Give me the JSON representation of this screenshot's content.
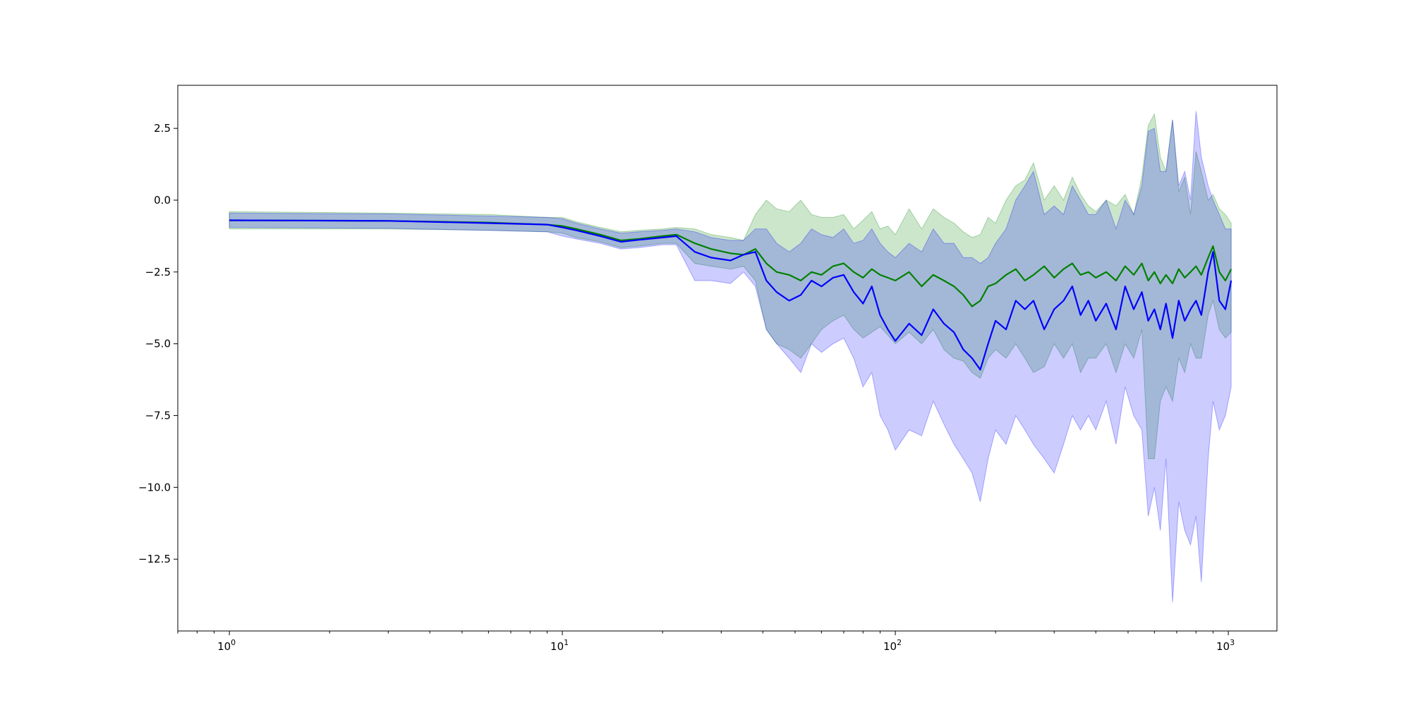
{
  "chart_data": {
    "type": "line",
    "title": "",
    "xlabel": "",
    "ylabel": "",
    "x_scale": "log",
    "xlim": [
      0.7,
      1400
    ],
    "ylim": [
      -15.0,
      4.0
    ],
    "x_ticks": [
      {
        "value": 1,
        "base": "10",
        "exp": "0"
      },
      {
        "value": 10,
        "base": "10",
        "exp": "1"
      },
      {
        "value": 100,
        "base": "10",
        "exp": "2"
      },
      {
        "value": 1000,
        "base": "10",
        "exp": "3"
      }
    ],
    "y_ticks": [
      {
        "value": 2.5,
        "label": "2.5"
      },
      {
        "value": 0.0,
        "label": "0.0"
      },
      {
        "value": -2.5,
        "label": "−2.5"
      },
      {
        "value": -5.0,
        "label": "−5.0"
      },
      {
        "value": -7.5,
        "label": "−7.5"
      },
      {
        "value": -10.0,
        "label": "−10.0"
      },
      {
        "value": -12.5,
        "label": "−12.5"
      }
    ],
    "grid": false,
    "legend": "none",
    "series": [
      {
        "color": "#008000",
        "band_color": "#008000",
        "band_opacity": 0.2,
        "points": [
          [
            1,
            -0.7,
            -1.0,
            -0.4
          ],
          [
            3,
            -0.72,
            -1.0,
            -0.45
          ],
          [
            6,
            -0.78,
            -1.05,
            -0.5
          ],
          [
            9,
            -0.85,
            -1.1,
            -0.6
          ],
          [
            10,
            -0.9,
            -1.15,
            -0.6
          ],
          [
            11,
            -1.0,
            -1.3,
            -0.75
          ],
          [
            13,
            -1.2,
            -1.45,
            -0.95
          ],
          [
            15,
            -1.4,
            -1.65,
            -1.1
          ],
          [
            17,
            -1.35,
            -1.6,
            -1.05
          ],
          [
            20,
            -1.25,
            -1.5,
            -1.0
          ],
          [
            22,
            -1.2,
            -1.5,
            -0.95
          ],
          [
            25,
            -1.5,
            -2.2,
            -1.0
          ],
          [
            28,
            -1.7,
            -2.3,
            -1.2
          ],
          [
            32,
            -1.85,
            -2.4,
            -1.3
          ],
          [
            35,
            -1.9,
            -2.3,
            -1.4
          ],
          [
            38,
            -1.7,
            -2.8,
            -0.5
          ],
          [
            41,
            -2.2,
            -4.5,
            0.0
          ],
          [
            44,
            -2.5,
            -5.0,
            -0.3
          ],
          [
            48,
            -2.6,
            -5.2,
            -0.4
          ],
          [
            52,
            -2.8,
            -5.5,
            0.0
          ],
          [
            56,
            -2.5,
            -5.0,
            -0.5
          ],
          [
            60,
            -2.6,
            -4.5,
            -0.6
          ],
          [
            65,
            -2.3,
            -4.2,
            -0.6
          ],
          [
            70,
            -2.2,
            -4.0,
            -0.5
          ],
          [
            75,
            -2.5,
            -4.5,
            -1.0
          ],
          [
            80,
            -2.7,
            -4.8,
            -0.7
          ],
          [
            85,
            -2.4,
            -4.6,
            -0.4
          ],
          [
            90,
            -2.6,
            -4.4,
            -1.0
          ],
          [
            95,
            -2.7,
            -4.7,
            -0.9
          ],
          [
            100,
            -2.8,
            -5.0,
            -1.2
          ],
          [
            110,
            -2.5,
            -4.6,
            -0.3
          ],
          [
            120,
            -3.0,
            -5.0,
            -1.0
          ],
          [
            130,
            -2.6,
            -4.5,
            -0.3
          ],
          [
            140,
            -2.8,
            -5.2,
            -0.6
          ],
          [
            150,
            -3.0,
            -5.5,
            -0.8
          ],
          [
            160,
            -3.3,
            -5.6,
            -1.1
          ],
          [
            170,
            -3.7,
            -6.0,
            -1.3
          ],
          [
            180,
            -3.5,
            -6.2,
            -1.2
          ],
          [
            190,
            -3.0,
            -5.5,
            -0.6
          ],
          [
            200,
            -2.9,
            -5.2,
            -0.8
          ],
          [
            215,
            -2.6,
            -5.5,
            0.0
          ],
          [
            230,
            -2.4,
            -5.0,
            0.5
          ],
          [
            245,
            -2.8,
            -5.5,
            0.7
          ],
          [
            260,
            -2.6,
            -6.0,
            1.3
          ],
          [
            280,
            -2.3,
            -5.8,
            0.0
          ],
          [
            300,
            -2.7,
            -5.0,
            0.5
          ],
          [
            320,
            -2.4,
            -5.5,
            0.0
          ],
          [
            340,
            -2.2,
            -5.0,
            0.8
          ],
          [
            360,
            -2.6,
            -6.0,
            0.2
          ],
          [
            380,
            -2.5,
            -5.5,
            -0.2
          ],
          [
            400,
            -2.7,
            -5.5,
            -0.4
          ],
          [
            430,
            -2.5,
            -5.0,
            0.0
          ],
          [
            460,
            -2.8,
            -6.0,
            -0.2
          ],
          [
            490,
            -2.3,
            -5.0,
            0.2
          ],
          [
            520,
            -2.6,
            -5.5,
            -0.5
          ],
          [
            550,
            -2.2,
            -4.5,
            0.8
          ],
          [
            575,
            -2.8,
            -9.0,
            2.6
          ],
          [
            600,
            -2.5,
            -9.0,
            3.0
          ],
          [
            625,
            -2.9,
            -7.0,
            1.5
          ],
          [
            650,
            -2.6,
            -6.5,
            1.0
          ],
          [
            680,
            -2.9,
            -7.0,
            2.8
          ],
          [
            710,
            -2.4,
            -5.5,
            0.3
          ],
          [
            740,
            -2.7,
            -6.0,
            0.8
          ],
          [
            770,
            -2.5,
            -5.0,
            -0.5
          ],
          [
            800,
            -2.3,
            -5.5,
            1.7
          ],
          [
            830,
            -2.6,
            -5.5,
            1.0
          ],
          [
            870,
            -2.0,
            -4.0,
            0.0
          ],
          [
            900,
            -1.6,
            -3.5,
            0.2
          ],
          [
            940,
            -2.5,
            -4.5,
            -0.3
          ],
          [
            980,
            -2.8,
            -4.8,
            -0.5
          ],
          [
            1020,
            -2.4,
            -4.6,
            -0.8
          ]
        ]
      },
      {
        "color": "#0000ff",
        "band_color": "#0000ff",
        "band_opacity": 0.2,
        "points": [
          [
            1,
            -0.7,
            -0.95,
            -0.45
          ],
          [
            3,
            -0.72,
            -0.98,
            -0.48
          ],
          [
            6,
            -0.8,
            -1.05,
            -0.55
          ],
          [
            9,
            -0.85,
            -1.1,
            -0.6
          ],
          [
            10,
            -0.95,
            -1.25,
            -0.65
          ],
          [
            11,
            -1.05,
            -1.35,
            -0.8
          ],
          [
            13,
            -1.25,
            -1.5,
            -1.0
          ],
          [
            15,
            -1.45,
            -1.7,
            -1.15
          ],
          [
            17,
            -1.38,
            -1.65,
            -1.1
          ],
          [
            20,
            -1.3,
            -1.55,
            -1.05
          ],
          [
            22,
            -1.25,
            -1.55,
            -1.0
          ],
          [
            25,
            -1.8,
            -2.8,
            -1.1
          ],
          [
            28,
            -2.0,
            -2.8,
            -1.3
          ],
          [
            32,
            -2.1,
            -2.9,
            -1.4
          ],
          [
            35,
            -1.9,
            -2.5,
            -1.4
          ],
          [
            38,
            -1.8,
            -3.0,
            -1.0
          ],
          [
            41,
            -2.8,
            -4.5,
            -1.0
          ],
          [
            44,
            -3.2,
            -5.0,
            -1.5
          ],
          [
            48,
            -3.5,
            -5.5,
            -1.8
          ],
          [
            52,
            -3.3,
            -6.0,
            -1.5
          ],
          [
            56,
            -2.8,
            -5.0,
            -1.0
          ],
          [
            60,
            -3.0,
            -5.3,
            -1.2
          ],
          [
            65,
            -2.7,
            -5.0,
            -1.3
          ],
          [
            70,
            -2.6,
            -4.8,
            -1.0
          ],
          [
            75,
            -3.2,
            -5.5,
            -1.5
          ],
          [
            80,
            -3.6,
            -6.5,
            -1.4
          ],
          [
            85,
            -3.0,
            -6.0,
            -1.0
          ],
          [
            90,
            -4.0,
            -7.5,
            -1.5
          ],
          [
            95,
            -4.5,
            -8.0,
            -1.8
          ],
          [
            100,
            -4.9,
            -8.7,
            -2.0
          ],
          [
            110,
            -4.3,
            -8.0,
            -1.5
          ],
          [
            120,
            -4.7,
            -8.2,
            -1.8
          ],
          [
            130,
            -3.8,
            -7.0,
            -1.0
          ],
          [
            140,
            -4.3,
            -7.8,
            -1.5
          ],
          [
            150,
            -4.6,
            -8.5,
            -1.5
          ],
          [
            160,
            -5.2,
            -9.0,
            -2.0
          ],
          [
            170,
            -5.5,
            -9.5,
            -2.0
          ],
          [
            180,
            -5.9,
            -10.5,
            -2.2
          ],
          [
            190,
            -5.0,
            -9.0,
            -2.0
          ],
          [
            200,
            -4.2,
            -8.0,
            -1.5
          ],
          [
            215,
            -4.5,
            -8.5,
            -1.0
          ],
          [
            230,
            -3.5,
            -7.5,
            0.0
          ],
          [
            245,
            -3.8,
            -8.0,
            0.5
          ],
          [
            260,
            -3.5,
            -8.5,
            1.0
          ],
          [
            280,
            -4.5,
            -9.0,
            -0.5
          ],
          [
            300,
            -3.8,
            -9.5,
            -0.2
          ],
          [
            320,
            -3.5,
            -8.5,
            -0.5
          ],
          [
            340,
            -3.0,
            -7.5,
            0.5
          ],
          [
            360,
            -4.0,
            -8.0,
            0.0
          ],
          [
            380,
            -3.5,
            -7.5,
            -0.5
          ],
          [
            400,
            -4.2,
            -8.0,
            -0.5
          ],
          [
            430,
            -3.6,
            -7.0,
            0.0
          ],
          [
            460,
            -4.5,
            -8.5,
            -1.0
          ],
          [
            490,
            -3.0,
            -6.5,
            0.0
          ],
          [
            520,
            -3.8,
            -7.5,
            -0.5
          ],
          [
            550,
            -3.2,
            -8.0,
            0.5
          ],
          [
            575,
            -4.2,
            -11.0,
            2.4
          ],
          [
            600,
            -3.8,
            -10.0,
            2.5
          ],
          [
            625,
            -4.5,
            -11.5,
            1.0
          ],
          [
            650,
            -3.6,
            -9.0,
            1.0
          ],
          [
            680,
            -4.8,
            -14.0,
            2.8
          ],
          [
            710,
            -3.5,
            -10.5,
            0.5
          ],
          [
            740,
            -4.2,
            -11.5,
            1.0
          ],
          [
            770,
            -3.8,
            -12.0,
            0.0
          ],
          [
            800,
            -3.5,
            -11.0,
            3.1
          ],
          [
            830,
            -4.0,
            -13.3,
            1.5
          ],
          [
            870,
            -2.5,
            -9.0,
            0.5
          ],
          [
            900,
            -1.8,
            -7.0,
            0.0
          ],
          [
            940,
            -3.5,
            -8.0,
            -0.5
          ],
          [
            980,
            -3.8,
            -7.5,
            -1.0
          ],
          [
            1020,
            -2.8,
            -6.5,
            -1.0
          ]
        ]
      }
    ]
  }
}
